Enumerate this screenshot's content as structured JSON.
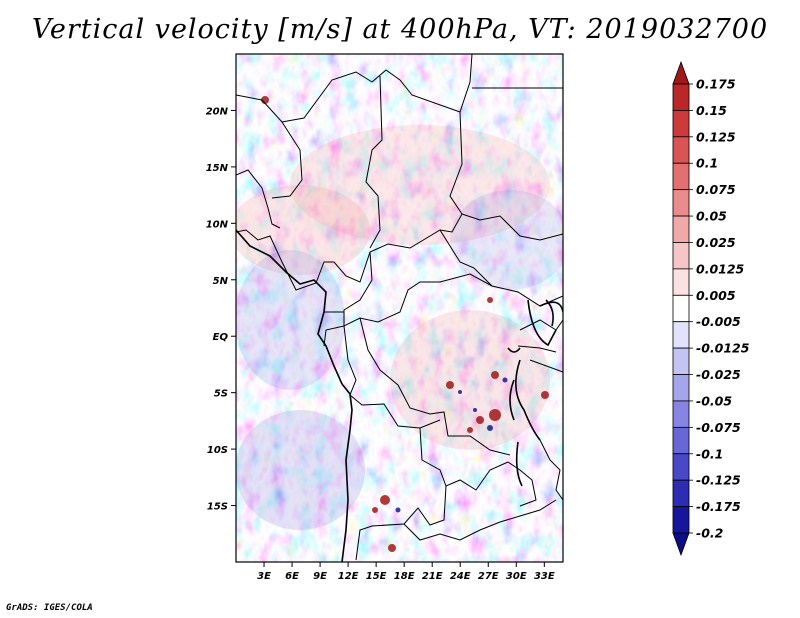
{
  "title": "Vertical velocity [m/s] at 400hPa, VT: 2019032700",
  "credit": "GrADS: IGES/COLA",
  "map": {
    "lon_range": [
      0,
      35
    ],
    "lat_range": [
      -20,
      25
    ],
    "lon_ticks": [
      "3E",
      "6E",
      "9E",
      "12E",
      "15E",
      "18E",
      "21E",
      "24E",
      "27E",
      "30E",
      "33E"
    ],
    "lat_ticks": [
      "20N",
      "15N",
      "10N",
      "5N",
      "EQ",
      "5S",
      "10S",
      "15S"
    ]
  },
  "colorbar": {
    "labels": [
      "0.175",
      "0.15",
      "0.125",
      "0.1",
      "0.075",
      "0.05",
      "0.025",
      "0.0125",
      "0.005",
      "-0.005",
      "-0.0125",
      "-0.025",
      "-0.05",
      "-0.075",
      "-0.1",
      "-0.125",
      "-0.175",
      "-0.2"
    ],
    "colors": [
      "#a01818",
      "#bb2626",
      "#cc3a3a",
      "#d95454",
      "#e27070",
      "#ea8c8c",
      "#f1a8a8",
      "#f6c6c6",
      "#fbe2e2",
      "#ffffff",
      "#e2e2fb",
      "#c4c4f4",
      "#a5a5ec",
      "#8686e2",
      "#6767d6",
      "#4848c8",
      "#2c2cb4",
      "#16169c",
      "#0c0c86"
    ]
  }
}
